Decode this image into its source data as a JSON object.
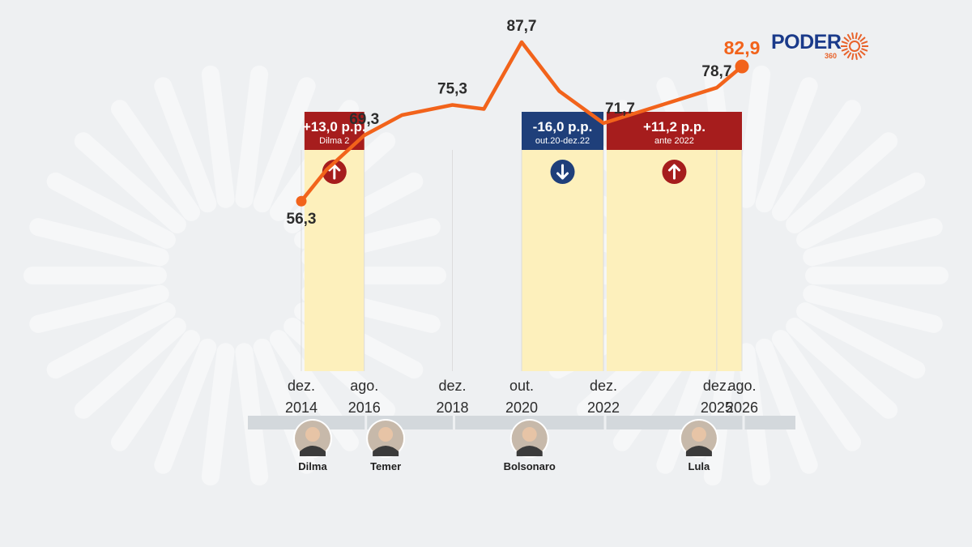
{
  "brand": {
    "name": "PODER",
    "sub": "360",
    "colors": {
      "blue": "#1a3a8a",
      "orange": "#e8622a",
      "red": "#a61d1d"
    }
  },
  "chart_data": {
    "type": "line",
    "title": "",
    "xlabel": "",
    "ylabel": "",
    "ylim": [
      40,
      100
    ],
    "grid": false,
    "legend": "none",
    "line_color": "#f2631b",
    "x_ticks": [
      {
        "date": "2014-12",
        "label": [
          "dez.",
          "2014"
        ]
      },
      {
        "date": "2016-08",
        "label": [
          "ago.",
          "2016"
        ]
      },
      {
        "date": "2018-12",
        "label": [
          "dez.",
          "2018"
        ]
      },
      {
        "date": "2020-10",
        "label": [
          "out.",
          "2020"
        ]
      },
      {
        "date": "2022-12",
        "label": [
          "dez.",
          "2022"
        ]
      },
      {
        "date": "2025-12",
        "label": [
          "dez.",
          "2025"
        ]
      },
      {
        "date": "2026-08",
        "label": [
          "ago.",
          "2026"
        ]
      }
    ],
    "series": [
      {
        "points": [
          {
            "date": "2014-12",
            "value": 56.3
          },
          {
            "date": "2015-08",
            "value": 62.5
          },
          {
            "date": "2016-08",
            "value": 69.3
          },
          {
            "date": "2017-08",
            "value": 73.3
          },
          {
            "date": "2018-12",
            "value": 75.3
          },
          {
            "date": "2019-10",
            "value": 74.5
          },
          {
            "date": "2020-10",
            "value": 87.7
          },
          {
            "date": "2021-10",
            "value": 78.0
          },
          {
            "date": "2022-12",
            "value": 71.7
          },
          {
            "date": "2025-12",
            "value": 78.7
          },
          {
            "date": "2026-08",
            "value": 82.9
          }
        ]
      }
    ],
    "data_labels": [
      {
        "date": "2014-12",
        "value": 56.3,
        "text": "56,3"
      },
      {
        "date": "2016-08",
        "value": 69.3,
        "text": "69,3"
      },
      {
        "date": "2018-12",
        "value": 75.3,
        "text": "75,3"
      },
      {
        "date": "2020-10",
        "value": 87.7,
        "text": "87,7"
      },
      {
        "date": "2022-12",
        "value": 71.7,
        "text": "71,7"
      },
      {
        "date": "2025-12",
        "value": 78.7,
        "text": "78,7"
      },
      {
        "date": "2026-08",
        "value": 82.9,
        "text": "82,9"
      }
    ],
    "highlights": [
      {
        "from": "2015-01",
        "to": "2016-08",
        "change": "+13,0 p.p.",
        "period": "Dilma 2",
        "direction": "up",
        "color": "#a61d1d"
      },
      {
        "from": "2020-10",
        "to": "2022-12",
        "change": "-16,0 p.p.",
        "period": "out.20-dez.22",
        "direction": "down",
        "color": "#1f3f7a"
      },
      {
        "from": "2023-01",
        "to": "2026-08",
        "change": "+11,2 p.p.",
        "period": "ante 2022",
        "direction": "up",
        "color": "#a61d1d"
      }
    ],
    "presidents": [
      {
        "name": "Dilma",
        "from": "2014-12",
        "to": "2016-08"
      },
      {
        "name": "Temer",
        "from": "2016-08",
        "to": "2018-12"
      },
      {
        "name": "Bolsonaro",
        "from": "2019-01",
        "to": "2022-12"
      },
      {
        "name": "Lula",
        "from": "2023-01",
        "to": "2026-08"
      }
    ]
  }
}
